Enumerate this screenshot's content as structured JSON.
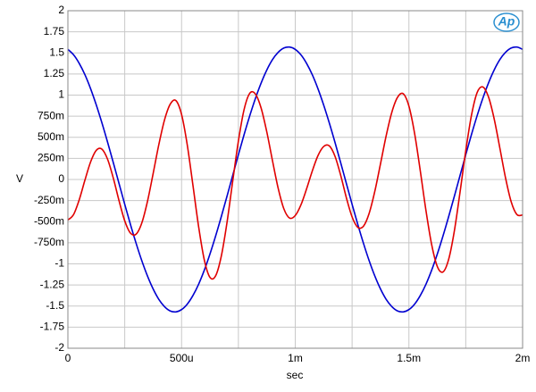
{
  "chart_data": {
    "type": "line",
    "logo": "Ap",
    "xlabel": "sec",
    "ylabel": "V",
    "grid": true,
    "xlim": [
      0,
      0.002
    ],
    "ylim": [
      -2,
      2
    ],
    "xticks": [
      0,
      {
        "value": 0.0005,
        "label": "500u"
      },
      {
        "value": 0.001,
        "label": "1m"
      },
      {
        "value": 0.0015,
        "label": "1.5m"
      },
      {
        "value": 0.002,
        "label": "2m"
      }
    ],
    "yticks": [
      -2,
      -1.75,
      -1.5,
      -1.25,
      -1,
      {
        "value": -0.75,
        "label": "-750m"
      },
      {
        "value": -0.5,
        "label": "-500m"
      },
      {
        "value": -0.25,
        "label": "-250m"
      },
      0,
      {
        "value": 0.25,
        "label": "250m"
      },
      {
        "value": 0.5,
        "label": "500m"
      },
      {
        "value": 0.75,
        "label": "750m"
      },
      1,
      1.25,
      1.5,
      1.75,
      2
    ],
    "x": [
      0,
      2.5e-05,
      5e-05,
      7.5e-05,
      0.0001,
      0.000125,
      0.00015,
      0.000175,
      0.0002,
      0.000225,
      0.00025,
      0.000275,
      0.0003,
      0.000325,
      0.00035,
      0.000375,
      0.0004,
      0.000425,
      0.00045,
      0.000475,
      0.0005,
      0.000525,
      0.00055,
      0.000575,
      0.0006,
      0.000625,
      0.00065,
      0.000675,
      0.0007,
      0.000725,
      0.00075,
      0.000775,
      0.0008,
      0.000825,
      0.00085,
      0.000875,
      0.0009,
      0.000925,
      0.00095,
      0.000975,
      0.001,
      0.001025,
      0.00105,
      0.001075,
      0.0011,
      0.001125,
      0.00115,
      0.001175,
      0.0012,
      0.001225,
      0.00125,
      0.001275,
      0.0013,
      0.001325,
      0.00135,
      0.001375,
      0.0014,
      0.001425,
      0.00145,
      0.001475,
      0.0015,
      0.001525,
      0.00155,
      0.001575,
      0.0016,
      0.001625,
      0.00165,
      0.001675,
      0.0017,
      0.001725,
      0.00175,
      0.001775,
      0.0018,
      0.001825,
      0.00185,
      0.001875,
      0.0019,
      0.001925,
      0.00195,
      0.001975,
      0.002
    ],
    "series": [
      {
        "color": "#0000d0",
        "values": [
          1.542,
          1.477,
          1.375,
          1.241,
          1.075,
          0.882,
          0.668,
          0.438,
          0.197,
          -0.049,
          -0.294,
          -0.532,
          -0.756,
          -0.962,
          -1.144,
          -1.298,
          -1.421,
          -1.507,
          -1.558,
          -1.569,
          -1.542,
          -1.477,
          -1.375,
          -1.241,
          -1.075,
          -0.882,
          -0.668,
          -0.438,
          -0.197,
          0.049,
          0.294,
          0.532,
          0.756,
          0.962,
          1.144,
          1.298,
          1.421,
          1.507,
          1.558,
          1.569,
          1.542,
          1.477,
          1.375,
          1.241,
          1.075,
          0.882,
          0.668,
          0.438,
          0.197,
          -0.049,
          -0.294,
          -0.532,
          -0.756,
          -0.962,
          -1.144,
          -1.298,
          -1.421,
          -1.507,
          -1.558,
          -1.569,
          -1.542,
          -1.477,
          -1.375,
          -1.241,
          -1.075,
          -0.882,
          -0.668,
          -0.438,
          -0.197,
          0.049,
          0.294,
          0.532,
          0.756,
          0.962,
          1.144,
          1.298,
          1.421,
          1.507,
          1.558,
          1.569,
          1.542
        ]
      },
      {
        "color": "#e00000",
        "values": [
          -0.48,
          -0.415,
          -0.239,
          -0.007,
          0.209,
          0.346,
          0.359,
          0.237,
          0.014,
          -0.252,
          -0.49,
          -0.635,
          -0.648,
          -0.516,
          -0.26,
          0.071,
          0.414,
          0.706,
          0.892,
          0.935,
          0.77,
          0.41,
          -0.069,
          -0.559,
          -0.953,
          -1.161,
          -1.14,
          -0.905,
          -0.507,
          -0.019,
          0.456,
          0.829,
          1.022,
          1.012,
          0.845,
          0.562,
          0.221,
          -0.105,
          -0.348,
          -0.457,
          -0.427,
          -0.301,
          -0.11,
          0.101,
          0.283,
          0.391,
          0.398,
          0.274,
          0.048,
          -0.218,
          -0.443,
          -0.567,
          -0.554,
          -0.402,
          -0.14,
          0.186,
          0.519,
          0.798,
          0.974,
          1.016,
          0.869,
          0.545,
          0.102,
          -0.369,
          -0.772,
          -1.032,
          -1.096,
          -0.944,
          -0.607,
          -0.147,
          0.341,
          0.759,
          1.03,
          1.097,
          0.978,
          0.718,
          0.372,
          0.018,
          -0.266,
          -0.416,
          -0.42
        ]
      }
    ]
  }
}
